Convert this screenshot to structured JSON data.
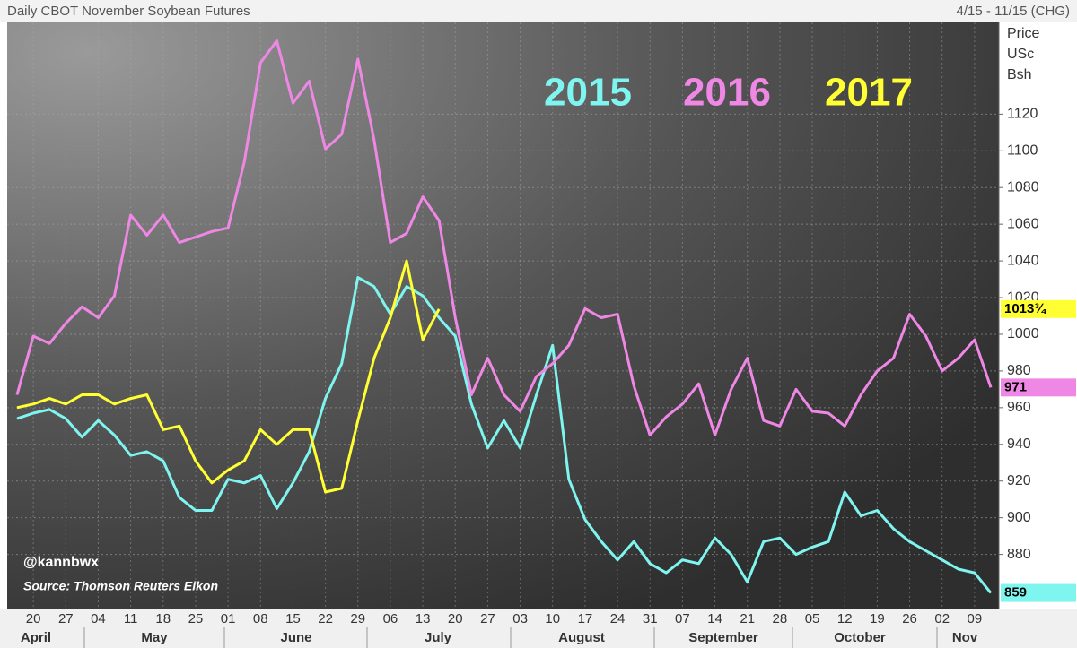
{
  "chart_data": {
    "type": "line",
    "title": "Daily CBOT November Soybean Futures",
    "subtitle": "4/15 - 11/15 (CHG)",
    "ylabel_lines": [
      "Price",
      "USc",
      "Bsh"
    ],
    "annotations": [
      "@kannbwx",
      "Source: Thomson Reuters Eikon"
    ],
    "months": [
      "April",
      "May",
      "June",
      "July",
      "August",
      "September",
      "October",
      "Nov"
    ],
    "categories": [
      null,
      "20",
      null,
      "27",
      null,
      "04",
      null,
      "11",
      null,
      "18",
      null,
      "25",
      null,
      "01",
      null,
      "08",
      null,
      "15",
      null,
      "22",
      null,
      "29",
      null,
      "06",
      null,
      "13",
      null,
      "20",
      null,
      "27",
      null,
      "03",
      null,
      "10",
      null,
      "17",
      null,
      "24",
      null,
      "31",
      null,
      "07",
      null,
      "14",
      null,
      "21",
      null,
      "28",
      null,
      "05",
      null,
      "12",
      null,
      "19",
      null,
      "26",
      null,
      "02",
      null,
      "09",
      null
    ],
    "ylim": [
      850,
      1170
    ],
    "yticks": [
      880,
      900,
      920,
      940,
      960,
      980,
      1000,
      1020,
      1040,
      1060,
      1080,
      1100,
      1120
    ],
    "grid": true,
    "series": [
      {
        "name": "2015",
        "color": "#7ff5f0",
        "end_label": "859",
        "values": [
          954,
          957,
          959,
          954,
          944,
          953,
          945,
          934,
          936,
          931,
          911,
          904,
          904,
          921,
          919,
          923,
          905,
          919,
          936,
          965,
          984,
          1031,
          1026,
          1011,
          1026,
          1021,
          1009,
          999,
          962,
          938,
          953,
          938,
          967,
          994,
          921,
          899,
          887,
          877,
          887,
          875,
          870,
          877,
          875,
          889,
          880,
          865,
          887,
          889,
          880,
          884,
          887,
          914,
          901,
          904,
          894,
          887,
          882,
          877,
          872,
          870,
          859
        ]
      },
      {
        "name": "2016",
        "color": "#ee88e4",
        "end_label": "971",
        "values": [
          967,
          999,
          995,
          1006,
          1015,
          1009,
          1021,
          1065,
          1054,
          1065,
          1050,
          1053,
          1056,
          1058,
          1094,
          1148,
          1160,
          1126,
          1138,
          1101,
          1109,
          1150,
          1106,
          1050,
          1055,
          1075,
          1062,
          1009,
          967,
          987,
          967,
          958,
          977,
          984,
          994,
          1014,
          1009,
          1011,
          972,
          945,
          955,
          962,
          973,
          945,
          970,
          987,
          953,
          950,
          970,
          958,
          957,
          950,
          967,
          980,
          987,
          1011,
          999,
          980,
          987,
          997,
          971
        ]
      },
      {
        "name": "2017",
        "color": "#ffff33",
        "end_label": "1013¾",
        "values": [
          960,
          962,
          965,
          962,
          967,
          967,
          962,
          965,
          967,
          948,
          950,
          931,
          919,
          926,
          931,
          948,
          940,
          948,
          948,
          914,
          916,
          953,
          987,
          1009,
          1040,
          997,
          1013.75,
          null,
          null,
          null,
          null,
          null,
          null,
          null,
          null,
          null,
          null,
          null,
          null,
          null,
          null,
          null,
          null,
          null,
          null,
          null,
          null,
          null,
          null,
          null,
          null,
          null,
          null,
          null,
          null,
          null,
          null,
          null,
          null,
          null,
          null
        ]
      }
    ]
  }
}
